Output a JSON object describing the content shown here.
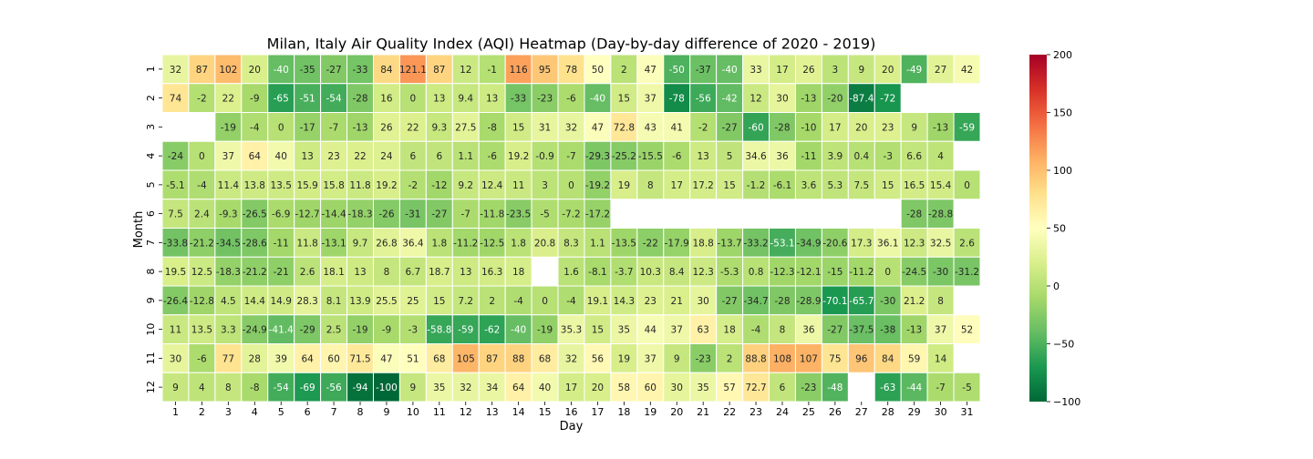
{
  "chart_data": {
    "type": "heatmap",
    "title": "Milan, Italy Air Quality Index (AQI) Heatmap (Day-by-day difference of 2020 - 2019)",
    "xlabel": "Day",
    "ylabel": "Month",
    "x_categories": [
      "1",
      "2",
      "3",
      "4",
      "5",
      "6",
      "7",
      "8",
      "9",
      "10",
      "11",
      "12",
      "13",
      "14",
      "15",
      "16",
      "17",
      "18",
      "19",
      "20",
      "21",
      "22",
      "23",
      "24",
      "25",
      "26",
      "27",
      "28",
      "29",
      "30",
      "31"
    ],
    "y_categories": [
      "1",
      "2",
      "3",
      "4",
      "5",
      "6",
      "7",
      "8",
      "9",
      "10",
      "11",
      "12"
    ],
    "colormap": "RdYlGn_r",
    "vmin": -100,
    "vmax": 200,
    "colorbar_ticks": [
      -100,
      -50,
      0,
      50,
      100,
      150,
      200
    ],
    "colorbar_tick_labels": [
      "−100",
      "−50",
      "0",
      "50",
      "100",
      "150",
      "200"
    ],
    "values": [
      [
        32,
        87,
        102,
        20,
        -40,
        -35,
        -27,
        -33,
        84,
        121.1,
        87,
        12,
        -1,
        116,
        95,
        78,
        50,
        2,
        47,
        -50,
        -37,
        -40,
        33,
        17,
        26,
        3,
        9,
        20,
        -49,
        27,
        42
      ],
      [
        74,
        -2,
        22,
        -9,
        -65,
        -51,
        -54,
        -28,
        16,
        0,
        13,
        9.4,
        13,
        -33,
        -23,
        -6,
        -40,
        15,
        37,
        -78,
        -56,
        -42,
        12,
        30,
        -13,
        -20,
        -87.4,
        -72,
        null,
        null,
        null
      ],
      [
        null,
        null,
        -19,
        -4,
        0,
        -17,
        -7,
        -13,
        26,
        22,
        9.3,
        27.5,
        -8,
        15,
        31,
        32,
        47,
        72.8,
        43,
        41,
        -2,
        -27,
        -60,
        -28,
        -10,
        17,
        20,
        23,
        9,
        -13,
        -59
      ],
      [
        -24,
        0,
        37,
        64,
        40,
        13,
        23,
        22,
        24,
        6,
        6,
        1.1,
        -6,
        19.2,
        -0.9,
        -7,
        -29.3,
        -25.2,
        -15.5,
        -6,
        13,
        5,
        34.6,
        36,
        -11,
        3.9,
        0.4,
        -3,
        6.6,
        4,
        null
      ],
      [
        -5.1,
        -4,
        11.4,
        13.8,
        13.5,
        15.9,
        15.8,
        11.8,
        19.2,
        -2,
        -12,
        9.2,
        12.4,
        11,
        3,
        0,
        -19.2,
        19,
        8,
        17,
        17.2,
        15,
        -1.2,
        -6.1,
        3.6,
        5.3,
        7.5,
        15,
        16.5,
        15.4,
        0
      ],
      [
        7.5,
        2.4,
        -9.3,
        -26.5,
        -6.9,
        -12.7,
        -14.4,
        -18.3,
        -26,
        -31,
        -27,
        -7,
        -11.8,
        -23.5,
        -5,
        -7.2,
        -17.2,
        null,
        null,
        null,
        null,
        null,
        null,
        null,
        null,
        null,
        null,
        null,
        -28,
        -28.8,
        null
      ],
      [
        -33.8,
        -21.2,
        -34.5,
        -28.6,
        -11,
        11.8,
        -13.1,
        9.7,
        26.8,
        36.4,
        1.8,
        -11.2,
        -12.5,
        1.8,
        20.8,
        8.3,
        1.1,
        -13.5,
        -22,
        -17.9,
        18.8,
        -13.7,
        -33.2,
        -53.1,
        -34.9,
        -20.6,
        17.3,
        36.1,
        12.3,
        32.5,
        2.6
      ],
      [
        19.5,
        12.5,
        -18.3,
        -21.2,
        -21,
        2.6,
        18.1,
        13,
        8,
        6.7,
        18.7,
        13,
        16.3,
        18,
        null,
        1.6,
        -8.1,
        -3.7,
        10.3,
        8.4,
        12.3,
        -5.3,
        0.8,
        -12.3,
        -12.1,
        -15,
        -11.2,
        0,
        -24.5,
        -30,
        -31.2
      ],
      [
        -26.4,
        -12.8,
        4.5,
        14.4,
        14.9,
        28.3,
        8.1,
        13.9,
        25.5,
        25,
        15,
        7.2,
        2,
        -4,
        0,
        -4,
        19.1,
        14.3,
        23,
        21,
        30,
        -27,
        -34.7,
        -28,
        -28.9,
        -70.1,
        -65.7,
        -30,
        21.2,
        8,
        null
      ],
      [
        11,
        13.5,
        3.3,
        -24.9,
        -41.4,
        -29,
        2.5,
        -19,
        -9,
        -3,
        -58.8,
        -59,
        -62,
        -40,
        -19,
        35.3,
        15,
        35,
        44,
        37,
        63,
        18,
        -4,
        8,
        36,
        -27,
        -37.5,
        -38,
        -13,
        37,
        52
      ],
      [
        30,
        -6,
        77,
        28,
        39,
        64,
        60,
        71.5,
        47,
        51,
        68,
        105,
        87,
        88,
        68,
        32,
        56,
        19,
        37,
        9,
        -23,
        2,
        88.8,
        108,
        107,
        75,
        96,
        84,
        59,
        14,
        null
      ],
      [
        9,
        4,
        8,
        -8,
        -54,
        -69,
        -56,
        -94,
        -100,
        9,
        35,
        32,
        34,
        64,
        40,
        17,
        20,
        58,
        60,
        30,
        35,
        57,
        72.7,
        6,
        -23,
        -48,
        null,
        -63,
        -44,
        -7,
        -5
      ]
    ]
  }
}
